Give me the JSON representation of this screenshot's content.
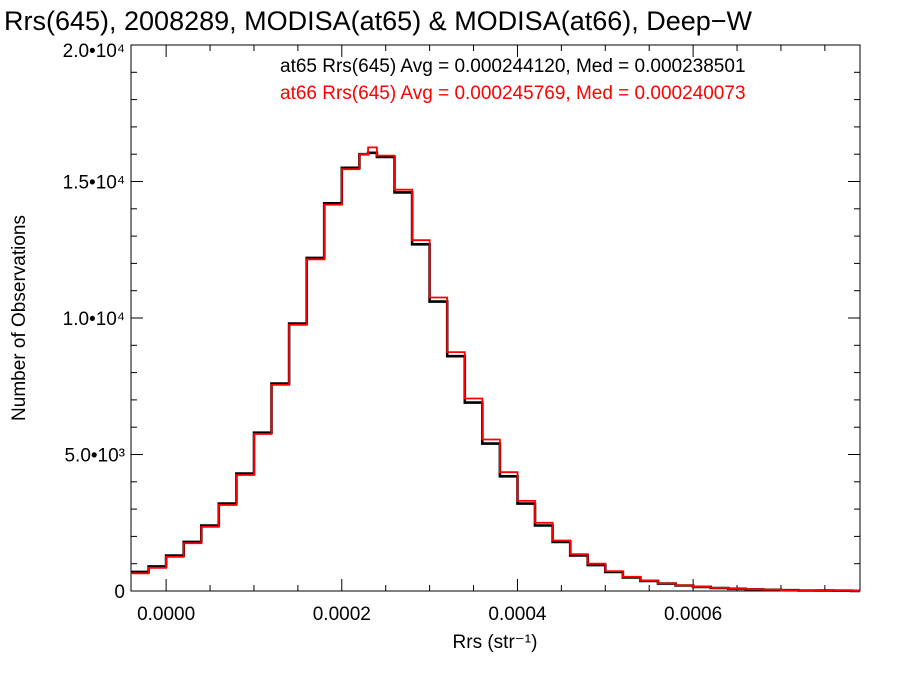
{
  "chart_data": {
    "type": "line",
    "title": "Rrs(645), 2008289, MODISA(at65) & MODISA(at66), Deep−W",
    "xlabel": "Rrs (str⁻¹)",
    "ylabel": "Number of Observations",
    "xlim": [
      -4e-05,
      0.00079
    ],
    "ylim": [
      0,
      20000
    ],
    "x_ticks": [
      {
        "value": 0.0,
        "label": "0.0000"
      },
      {
        "value": 0.0002,
        "label": "0.0002"
      },
      {
        "value": 0.0004,
        "label": "0.0004"
      },
      {
        "value": 0.0006,
        "label": "0.0006"
      }
    ],
    "y_ticks": [
      {
        "value": 0,
        "label": "0"
      },
      {
        "value": 5000,
        "label": "5.0•10³"
      },
      {
        "value": 10000,
        "label": "1.0•10⁴"
      },
      {
        "value": 15000,
        "label": "1.5•10⁴"
      },
      {
        "value": 20000,
        "label": "2.0•10⁴"
      }
    ],
    "grid": false,
    "step": true,
    "annotations": [
      {
        "text": "at65 Rrs(645) Avg = 0.000244120, Med = 0.000238501",
        "color": "#000000"
      },
      {
        "text": "at66 Rrs(645) Avg = 0.000245769, Med = 0.000240073",
        "color": "#ff0000"
      }
    ],
    "series": [
      {
        "color": "#000000",
        "x": [
          -4e-05,
          -2e-05,
          0.0,
          2e-05,
          4e-05,
          6e-05,
          8e-05,
          0.0001,
          0.00012,
          0.00014,
          0.00016,
          0.00018,
          0.0002,
          0.00022,
          0.00023,
          0.00024,
          0.00026,
          0.00028,
          0.0003,
          0.00032,
          0.00034,
          0.00036,
          0.00038,
          0.0004,
          0.00042,
          0.00044,
          0.00046,
          0.00048,
          0.0005,
          0.00052,
          0.00054,
          0.00056,
          0.00058,
          0.0006,
          0.00062,
          0.00064,
          0.00066,
          0.00068,
          0.0007,
          0.00072,
          0.00074,
          0.00076,
          0.00078
        ],
        "y": [
          700,
          900,
          1300,
          1800,
          2400,
          3200,
          4300,
          5800,
          7600,
          9800,
          12200,
          14200,
          15500,
          16000,
          16050,
          15900,
          14600,
          12700,
          10600,
          8600,
          6900,
          5400,
          4200,
          3200,
          2400,
          1800,
          1300,
          950,
          700,
          500,
          370,
          270,
          200,
          150,
          110,
          80,
          60,
          45,
          30,
          20,
          15,
          10,
          5
        ]
      },
      {
        "color": "#ff0000",
        "x": [
          -4e-05,
          -2e-05,
          0.0,
          2e-05,
          4e-05,
          6e-05,
          8e-05,
          0.0001,
          0.00012,
          0.00014,
          0.00016,
          0.00018,
          0.0002,
          0.00022,
          0.00023,
          0.00024,
          0.00026,
          0.00028,
          0.0003,
          0.00032,
          0.00034,
          0.00036,
          0.00038,
          0.0004,
          0.00042,
          0.00044,
          0.00046,
          0.00048,
          0.0005,
          0.00052,
          0.00054,
          0.00056,
          0.00058,
          0.0006,
          0.00062,
          0.00064,
          0.00066,
          0.00068,
          0.0007,
          0.00072,
          0.00074,
          0.00076,
          0.00078
        ],
        "y": [
          650,
          850,
          1250,
          1750,
          2350,
          3150,
          4250,
          5750,
          7550,
          9750,
          12150,
          14150,
          15450,
          16000,
          16250,
          15950,
          14700,
          12850,
          10750,
          8750,
          7050,
          5550,
          4350,
          3300,
          2500,
          1850,
          1350,
          1000,
          730,
          520,
          380,
          280,
          205,
          155,
          112,
          82,
          62,
          46,
          31,
          21,
          15,
          10,
          5
        ]
      }
    ]
  }
}
